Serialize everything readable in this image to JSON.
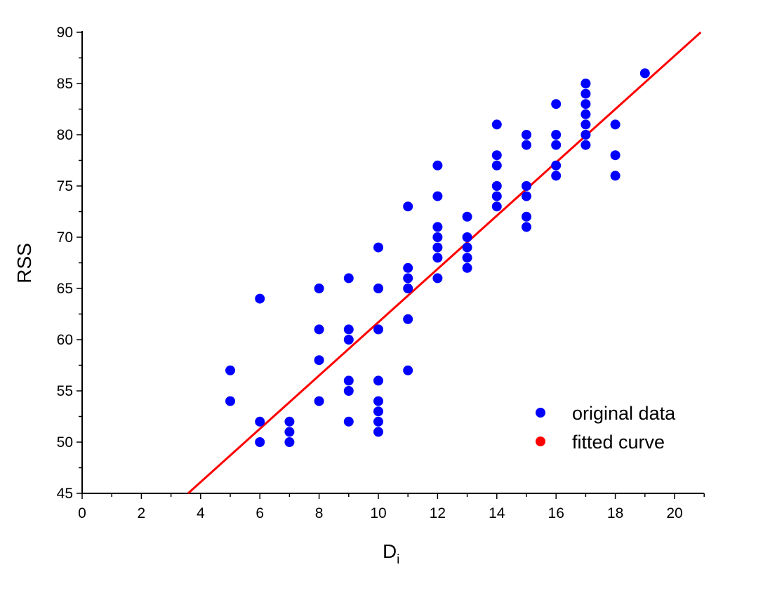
{
  "chart_data": {
    "type": "scatter",
    "title": "",
    "xlabel": "D",
    "xlabel_sub": "i",
    "ylabel": "RSS",
    "xlim": [
      0,
      21
    ],
    "ylim": [
      45,
      90
    ],
    "xticks": [
      "0",
      "2",
      "4",
      "6",
      "8",
      "10",
      "12",
      "14",
      "16",
      "18",
      "20"
    ],
    "yticks": [
      "45",
      "50",
      "55",
      "60",
      "65",
      "70",
      "75",
      "80",
      "85",
      "90"
    ],
    "grid": false,
    "legend_position": "bottom-right",
    "series": [
      {
        "name": "original data",
        "kind": "scatter",
        "color": "#0000ff",
        "points": [
          [
            5,
            57
          ],
          [
            5,
            54
          ],
          [
            6,
            64
          ],
          [
            6,
            52
          ],
          [
            6,
            50
          ],
          [
            7,
            52
          ],
          [
            7,
            51
          ],
          [
            7,
            50
          ],
          [
            8,
            65
          ],
          [
            8,
            61
          ],
          [
            8,
            58
          ],
          [
            8,
            54
          ],
          [
            9,
            66
          ],
          [
            9,
            61
          ],
          [
            9,
            60
          ],
          [
            9,
            56
          ],
          [
            9,
            55
          ],
          [
            9,
            52
          ],
          [
            10,
            69
          ],
          [
            10,
            65
          ],
          [
            10,
            61
          ],
          [
            10,
            56
          ],
          [
            10,
            54
          ],
          [
            10,
            53
          ],
          [
            10,
            52
          ],
          [
            10,
            51
          ],
          [
            11,
            73
          ],
          [
            11,
            67
          ],
          [
            11,
            66
          ],
          [
            11,
            65
          ],
          [
            11,
            62
          ],
          [
            11,
            57
          ],
          [
            12,
            77
          ],
          [
            12,
            74
          ],
          [
            12,
            71
          ],
          [
            12,
            70
          ],
          [
            12,
            69
          ],
          [
            12,
            68
          ],
          [
            12,
            66
          ],
          [
            13,
            72
          ],
          [
            13,
            70
          ],
          [
            13,
            69
          ],
          [
            13,
            68
          ],
          [
            13,
            67
          ],
          [
            14,
            81
          ],
          [
            14,
            78
          ],
          [
            14,
            77
          ],
          [
            14,
            75
          ],
          [
            14,
            74
          ],
          [
            14,
            73
          ],
          [
            15,
            80
          ],
          [
            15,
            79
          ],
          [
            15,
            75
          ],
          [
            15,
            74
          ],
          [
            15,
            72
          ],
          [
            15,
            71
          ],
          [
            16,
            83
          ],
          [
            16,
            80
          ],
          [
            16,
            79
          ],
          [
            16,
            77
          ],
          [
            16,
            76
          ],
          [
            17,
            85
          ],
          [
            17,
            84
          ],
          [
            17,
            83
          ],
          [
            17,
            82
          ],
          [
            17,
            81
          ],
          [
            17,
            80
          ],
          [
            17,
            79
          ],
          [
            18,
            81
          ],
          [
            18,
            78
          ],
          [
            18,
            76
          ],
          [
            19,
            86
          ]
        ]
      },
      {
        "name": "fitted curve",
        "kind": "line",
        "color": "#ff0000",
        "slope": 2.6,
        "intercept": 35.7
      }
    ]
  }
}
